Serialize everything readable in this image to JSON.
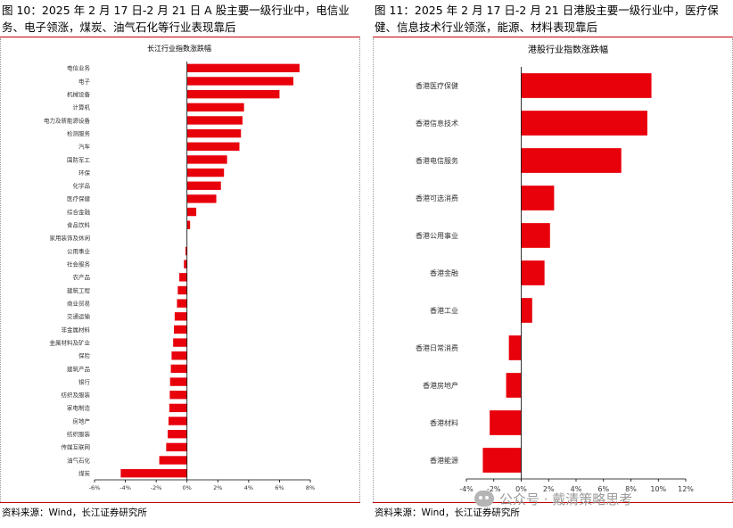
{
  "left": {
    "title": "图 10：2025 年 2 月 17 日-2 月 21 日 A 股主要一级行业中，电信业务、电子领涨，煤炭、油气石化等行业表现靠后",
    "source": "资料来源：Wind，长江证券研究所"
  },
  "right": {
    "title": "图 11：2025 年 2 月 17 日-2 月 21 日港股主要一级行业中，医疗保健、信息技术行业领涨，能源、材料表现靠后",
    "source": "资料来源：Wind，长江证券研究所"
  },
  "watermark": {
    "text": "公众号 · 戴清策略思考",
    "icon": "wechat-icon"
  },
  "colors": {
    "bar": "#e8000b",
    "axis": "#000000",
    "rule": "#c00000"
  },
  "chart_data": [
    {
      "type": "bar",
      "orientation": "horizontal",
      "title": "长江行业指数涨跌幅",
      "xlim": [
        -6,
        8
      ],
      "xticks": [
        -6,
        -4,
        -2,
        0,
        2,
        4,
        6,
        8
      ],
      "tick_format": "percent",
      "categories": [
        "电信业务",
        "电子",
        "机械设备",
        "计算机",
        "电力及新能源设备",
        "检测服务",
        "汽车",
        "国防军工",
        "环保",
        "化学品",
        "医疗保健",
        "综合金融",
        "食品饮料",
        "家用装饰及休闲",
        "公用事业",
        "社会服务",
        "农产品",
        "建筑工程",
        "商业贸易",
        "交通运输",
        "非金属材料",
        "金属材料及矿业",
        "保险",
        "建筑产品",
        "银行",
        "纺织及服装",
        "家电制造",
        "房地产",
        "纺织服装",
        "传媒互联网",
        "油气石化",
        "煤炭"
      ],
      "values": [
        7.3,
        6.9,
        6.0,
        3.7,
        3.6,
        3.5,
        3.4,
        2.6,
        2.4,
        2.2,
        1.9,
        0.6,
        0.2,
        0.0,
        -0.1,
        -0.2,
        -0.5,
        -0.6,
        -0.65,
        -0.8,
        -0.85,
        -0.9,
        -1.0,
        -1.05,
        -1.1,
        -1.12,
        -1.15,
        -1.2,
        -1.25,
        -1.35,
        -1.8,
        -4.3
      ]
    },
    {
      "type": "bar",
      "orientation": "horizontal",
      "title": "港股行业指数涨跌幅",
      "xlim": [
        -4,
        12
      ],
      "xticks": [
        -4,
        -2,
        0,
        2,
        4,
        6,
        8,
        10,
        12
      ],
      "tick_format": "percent",
      "categories": [
        "香港医疗保健",
        "香港信息技术",
        "香港电信服务",
        "香港可选消费",
        "香港公用事业",
        "香港金融",
        "香港工业",
        "香港日常消费",
        "香港房地产",
        "香港材料",
        "香港能源"
      ],
      "values": [
        9.5,
        9.2,
        7.3,
        2.4,
        2.1,
        1.7,
        0.8,
        -0.9,
        -1.1,
        -2.3,
        -2.8
      ]
    }
  ]
}
